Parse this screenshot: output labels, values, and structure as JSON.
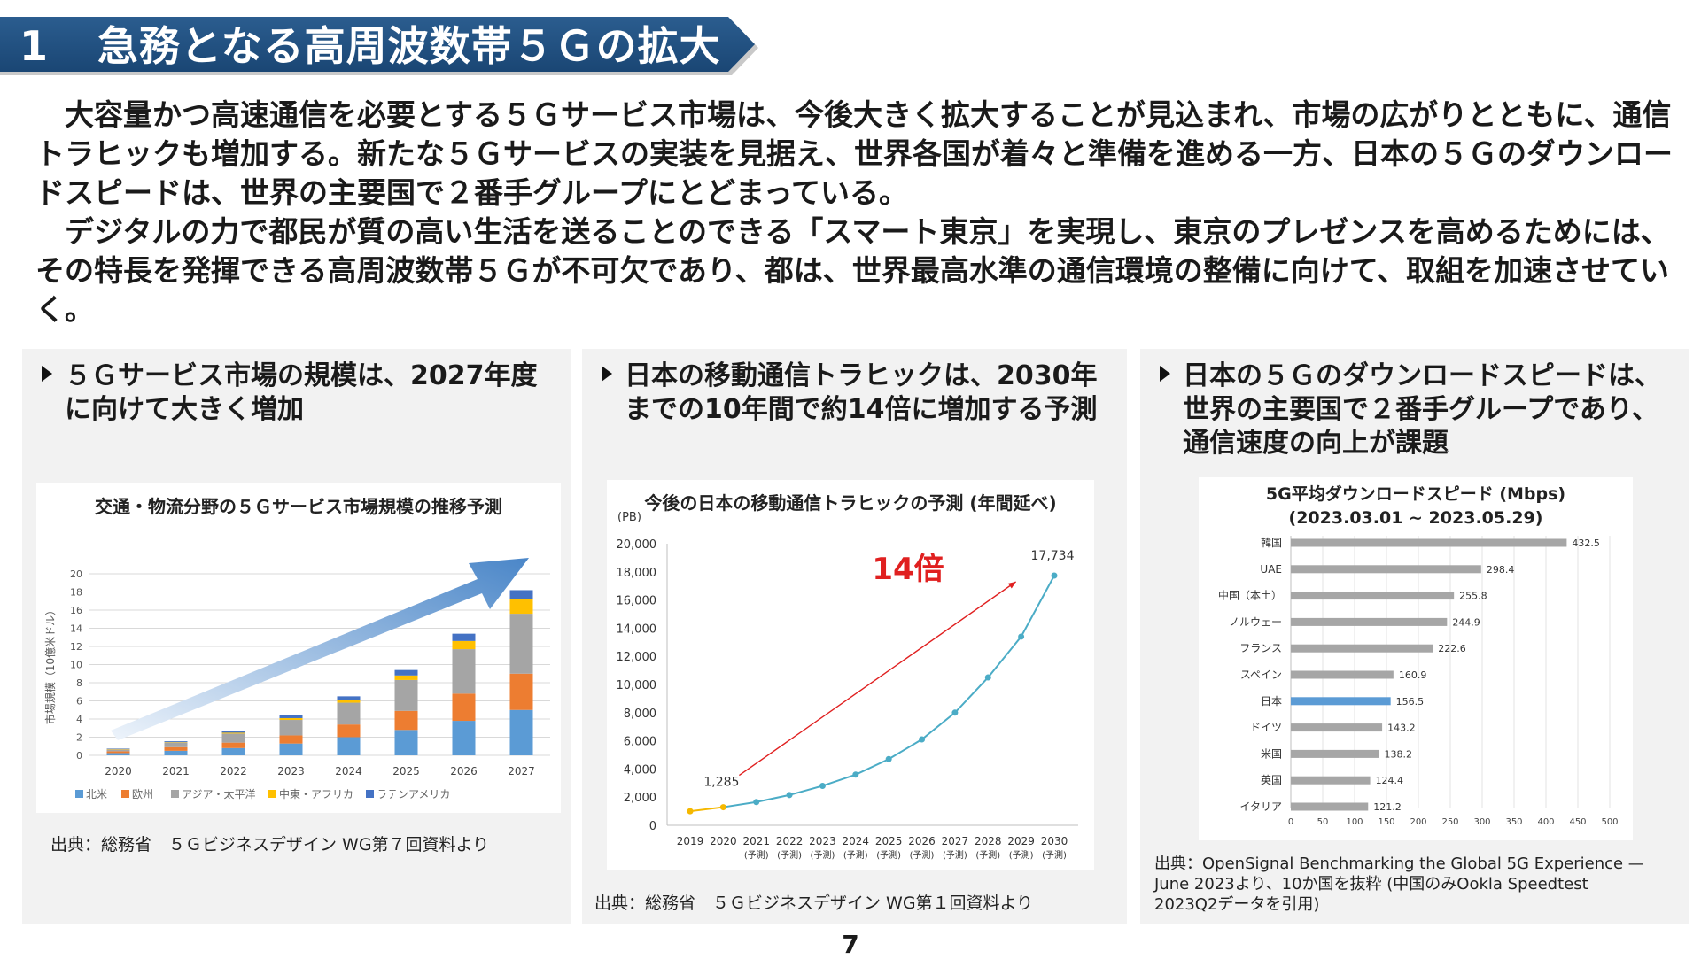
{
  "header": {
    "number": "1",
    "title": "急務となる高周波数帯５Ｇの拡大"
  },
  "intro": {
    "p1": "　大容量かつ高速通信を必要とする５Ｇサービス市場は、今後大きく拡大することが見込まれ、市場の広がりとともに、通信トラヒックも増加する。新たな５Ｇサービスの実装を見据え、世界各国が着々と準備を進める一方、日本の５Ｇのダウンロードスピードは、世界の主要国で２番手グループにとどまっている。",
    "p2": "　デジタルの力で都民が質の高い生活を送ることのできる「スマート東京」を実現し、東京のプレゼンスを高めるためには、その特長を発揮できる高周波数帯５Ｇが不可欠であり、都は、世界最高水準の通信環境の整備に向けて、取組を加速させていく。"
  },
  "panels": {
    "left": {
      "heading_line1": "５Ｇサービス市場の規模は、2027年度",
      "heading_line2": "に向けて大きく増加",
      "source": "出典：総務省　５Ｇビジネスデザイン WG第７回資料より"
    },
    "middle": {
      "heading_line1": "日本の移動通信トラヒックは、2030年",
      "heading_line2": "までの10年間で約14倍に増加する予測",
      "source": "出典：総務省　５Ｇビジネスデザイン WG第１回資料より"
    },
    "right": {
      "heading_line1": "日本の５Ｇのダウンロードスピードは、",
      "heading_line2": "世界の主要国で２番手グループであり、",
      "heading_line3": "通信速度の向上が課題",
      "source_line1": "出典：OpenSignal Benchmarking the Global 5G Experience —",
      "source_line2": "June 2023より、10か国を抜粋 (中国のみOokla Speedtest",
      "source_line3": "2023Q2データを引用)"
    }
  },
  "page_number": "7",
  "colors": {
    "banner": "#1f4e79",
    "north_america": "#5b9bd5",
    "europe": "#ed7d31",
    "asia_pacific": "#a5a5a5",
    "middle_east_africa": "#ffc000",
    "latin_america": "#4472c4",
    "traffic_line": "#4bacc6",
    "traffic_actual": "#f5b800",
    "arrow_red": "#e02020",
    "bar_gray": "#a6a6a6",
    "bar_japan": "#5b9bd5"
  },
  "chart_data": [
    {
      "type": "bar",
      "stacked": true,
      "title": "交通・物流分野の５Ｇサービス市場規模の推移予測",
      "ylabel": "市場規模（10億米ドル）",
      "ylim": [
        0,
        20
      ],
      "yticks": [
        0,
        2,
        4,
        6,
        8,
        10,
        12,
        14,
        16,
        18,
        20
      ],
      "grid": true,
      "legend_position": "bottom",
      "categories": [
        "2020",
        "2021",
        "2022",
        "2023",
        "2024",
        "2025",
        "2026",
        "2027"
      ],
      "series": [
        {
          "name": "北米",
          "values": [
            0.25,
            0.5,
            0.8,
            1.3,
            2.0,
            2.8,
            3.8,
            5.0
          ]
        },
        {
          "name": "欧州",
          "values": [
            0.2,
            0.4,
            0.6,
            0.9,
            1.4,
            2.1,
            3.0,
            4.0
          ]
        },
        {
          "name": "アジア・太平洋",
          "values": [
            0.2,
            0.5,
            1.0,
            1.7,
            2.4,
            3.4,
            4.9,
            6.6
          ]
        },
        {
          "name": "中東・アフリカ",
          "values": [
            0.05,
            0.05,
            0.1,
            0.2,
            0.3,
            0.5,
            0.9,
            1.6
          ]
        },
        {
          "name": "ラテンアメリカ",
          "values": [
            0.05,
            0.1,
            0.2,
            0.3,
            0.4,
            0.6,
            0.8,
            1.0
          ]
        }
      ]
    },
    {
      "type": "line",
      "title": "今後の日本の移動通信トラヒックの予測 (年間延べ)",
      "unit": "(PB)",
      "ylim": [
        0,
        20000
      ],
      "yticks": [
        "0",
        "2,000",
        "4,000",
        "6,000",
        "8,000",
        "10,000",
        "12,000",
        "14,000",
        "16,000",
        "18,000",
        "20,000"
      ],
      "x": [
        "2019",
        "2020",
        "2021",
        "2022",
        "2023",
        "2024",
        "2025",
        "2026",
        "2027",
        "2028",
        "2029",
        "2030"
      ],
      "x_sub": [
        "",
        "",
        "(予測)",
        "(予測)",
        "(予測)",
        "(予測)",
        "(予測)",
        "(予測)",
        "(予測)",
        "(予測)",
        "(予測)",
        "(予測)"
      ],
      "y": [
        1000,
        1285,
        1650,
        2150,
        2800,
        3600,
        4700,
        6100,
        8000,
        10500,
        13400,
        17734
      ],
      "data_labels": {
        "start": "1,285",
        "end": "17,734"
      },
      "annotation": "14倍",
      "grid": false
    },
    {
      "type": "bar",
      "orientation": "horizontal",
      "title_line1": "5G平均ダウンロードスピード (Mbps)",
      "title_line2": "(2023.03.01 ~ 2023.05.29)",
      "xlim": [
        0,
        500
      ],
      "xticks": [
        0,
        50,
        100,
        150,
        200,
        250,
        300,
        350,
        400,
        450,
        500
      ],
      "grid": true,
      "categories": [
        "韓国",
        "UAE",
        "中国（本土）",
        "ノルウェー",
        "フランス",
        "スペイン",
        "日本",
        "ドイツ",
        "米国",
        "英国",
        "イタリア"
      ],
      "values": [
        432.5,
        298.4,
        255.8,
        244.9,
        222.6,
        160.9,
        156.5,
        143.2,
        138.2,
        124.4,
        121.2
      ],
      "value_labels": [
        "432.5",
        "298.4",
        "255.8",
        "244.9",
        "222.6",
        "160.9",
        "156.5",
        "143.2",
        "138.2",
        "124.4",
        "121.2"
      ],
      "highlight": "日本"
    }
  ]
}
